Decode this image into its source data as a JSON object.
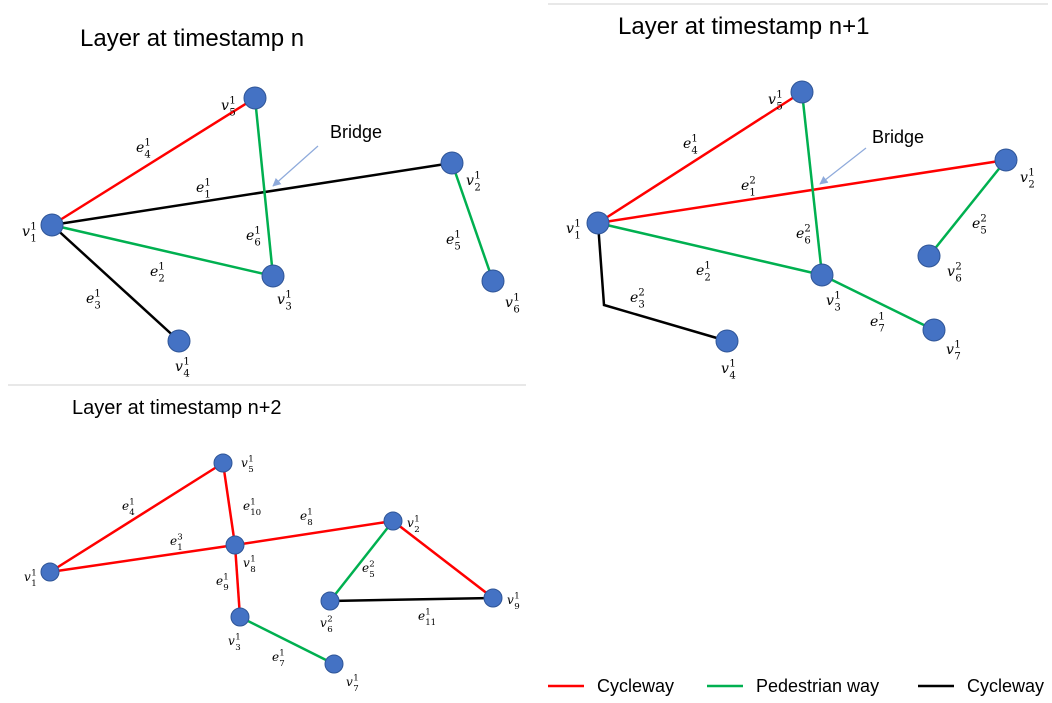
{
  "colors": {
    "cycleway": "#ff0000",
    "pedestrian": "#00b050",
    "black": "#000000",
    "node": "#4472c4",
    "arrow": "#8eaadb",
    "divider": "#d0d0d0"
  },
  "panels": [
    {
      "title": "Layer at timestamp n",
      "annotation": "Bridge",
      "nodes": [
        {
          "id": "v1",
          "base": "v",
          "sup": "1",
          "sub": "1"
        },
        {
          "id": "v5",
          "base": "v",
          "sup": "1",
          "sub": "5"
        },
        {
          "id": "v2",
          "base": "v",
          "sup": "1",
          "sub": "2"
        },
        {
          "id": "v3",
          "base": "v",
          "sup": "1",
          "sub": "3"
        },
        {
          "id": "v4",
          "base": "v",
          "sup": "1",
          "sub": "4"
        },
        {
          "id": "v6",
          "base": "v",
          "sup": "1",
          "sub": "6"
        }
      ],
      "edges": [
        {
          "id": "e4",
          "from": "v1",
          "to": "v5",
          "type": "cycleway",
          "base": "e",
          "sup": "1",
          "sub": "4"
        },
        {
          "id": "e1",
          "from": "v1",
          "to": "v2",
          "type": "black",
          "base": "e",
          "sup": "1",
          "sub": "1"
        },
        {
          "id": "e2",
          "from": "v1",
          "to": "v3",
          "type": "pedestrian",
          "base": "e",
          "sup": "1",
          "sub": "2"
        },
        {
          "id": "e6",
          "from": "v5",
          "to": "v3",
          "type": "pedestrian",
          "base": "e",
          "sup": "1",
          "sub": "6"
        },
        {
          "id": "e3",
          "from": "v1",
          "to": "v4",
          "type": "black",
          "base": "e",
          "sup": "1",
          "sub": "3"
        },
        {
          "id": "e5",
          "from": "v2",
          "to": "v6",
          "type": "pedestrian",
          "base": "e",
          "sup": "1",
          "sub": "5"
        }
      ]
    },
    {
      "title": "Layer at timestamp n+1",
      "annotation": "Bridge",
      "nodes": [
        {
          "id": "v1",
          "base": "v",
          "sup": "1",
          "sub": "1"
        },
        {
          "id": "v5",
          "base": "v",
          "sup": "1",
          "sub": "5"
        },
        {
          "id": "v2",
          "base": "v",
          "sup": "1",
          "sub": "2"
        },
        {
          "id": "v3",
          "base": "v",
          "sup": "1",
          "sub": "3"
        },
        {
          "id": "v6",
          "base": "v",
          "sup": "2",
          "sub": "6"
        },
        {
          "id": "v7",
          "base": "v",
          "sup": "1",
          "sub": "7"
        },
        {
          "id": "v4",
          "base": "v",
          "sup": "1",
          "sub": "4"
        }
      ],
      "edges": [
        {
          "id": "e4",
          "from": "v1",
          "to": "v5",
          "type": "cycleway",
          "base": "e",
          "sup": "1",
          "sub": "4"
        },
        {
          "id": "e1",
          "from": "v1",
          "to": "v2",
          "type": "cycleway",
          "base": "e",
          "sup": "2",
          "sub": "1"
        },
        {
          "id": "e2",
          "from": "v1",
          "to": "v3",
          "type": "pedestrian",
          "base": "e",
          "sup": "1",
          "sub": "2"
        },
        {
          "id": "e6",
          "from": "v5",
          "to": "v3",
          "type": "pedestrian",
          "base": "e",
          "sup": "2",
          "sub": "6"
        },
        {
          "id": "e5",
          "from": "v2",
          "to": "v6",
          "type": "pedestrian",
          "base": "e",
          "sup": "2",
          "sub": "5"
        },
        {
          "id": "e7",
          "from": "v3",
          "to": "v7",
          "type": "pedestrian",
          "base": "e",
          "sup": "1",
          "sub": "7"
        },
        {
          "id": "e3",
          "from": "v1",
          "to": "v4",
          "type": "black",
          "base": "e",
          "sup": "2",
          "sub": "3"
        }
      ]
    },
    {
      "title": "Layer at timestamp n+2",
      "annotation": "",
      "nodes": [
        {
          "id": "v1",
          "base": "v",
          "sup": "1",
          "sub": "1"
        },
        {
          "id": "v5",
          "base": "v",
          "sup": "1",
          "sub": "5"
        },
        {
          "id": "v8",
          "base": "v",
          "sup": "1",
          "sub": "8"
        },
        {
          "id": "v2",
          "base": "v",
          "sup": "1",
          "sub": "2"
        },
        {
          "id": "v3",
          "base": "v",
          "sup": "1",
          "sub": "3"
        },
        {
          "id": "v7",
          "base": "v",
          "sup": "1",
          "sub": "7"
        },
        {
          "id": "v6",
          "base": "v",
          "sup": "2",
          "sub": "6"
        },
        {
          "id": "v9",
          "base": "v",
          "sup": "1",
          "sub": "9"
        }
      ],
      "edges": [
        {
          "id": "e4",
          "from": "v1",
          "to": "v5",
          "type": "cycleway",
          "base": "e",
          "sup": "1",
          "sub": "4"
        },
        {
          "id": "e1",
          "from": "v1",
          "to": "v8",
          "type": "cycleway",
          "base": "e",
          "sup": "3",
          "sub": "1"
        },
        {
          "id": "e10",
          "from": "v5",
          "to": "v8",
          "type": "cycleway",
          "base": "e",
          "sup": "1",
          "sub": "10"
        },
        {
          "id": "e8",
          "from": "v8",
          "to": "v2",
          "type": "cycleway",
          "base": "e",
          "sup": "1",
          "sub": "8"
        },
        {
          "id": "e9",
          "from": "v8",
          "to": "v3",
          "type": "cycleway",
          "base": "e",
          "sup": "1",
          "sub": "9"
        },
        {
          "id": "e7",
          "from": "v3",
          "to": "v7",
          "type": "pedestrian",
          "base": "e",
          "sup": "1",
          "sub": "7"
        },
        {
          "id": "e5",
          "from": "v2",
          "to": "v6",
          "type": "pedestrian",
          "base": "e",
          "sup": "2",
          "sub": "5"
        },
        {
          "id": "e2b",
          "from": "v2",
          "to": "v9",
          "type": "cycleway",
          "base": "",
          "sup": "",
          "sub": ""
        },
        {
          "id": "e11",
          "from": "v6",
          "to": "v9",
          "type": "black",
          "base": "e",
          "sup": "1",
          "sub": "11"
        }
      ]
    }
  ],
  "legend": [
    {
      "label": "Cycleway",
      "type": "cycleway"
    },
    {
      "label": "Pedestrian way",
      "type": "pedestrian"
    },
    {
      "label": "Cycleway",
      "type": "black"
    }
  ]
}
